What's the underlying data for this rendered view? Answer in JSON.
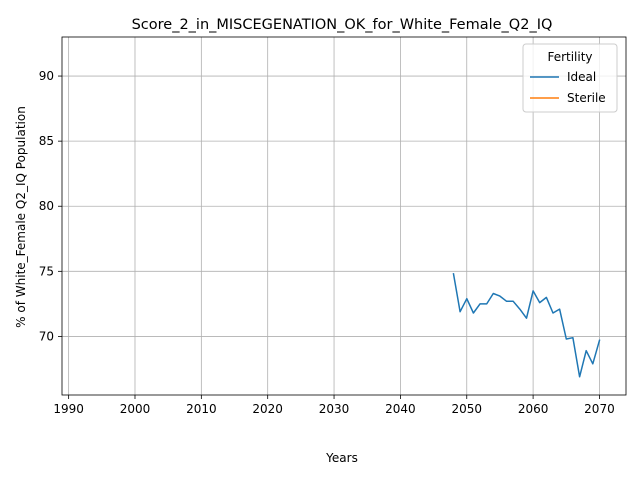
{
  "chart_data": {
    "type": "line",
    "title": "Score_2_in_MISCEGENATION_OK_for_White_Female_Q2_IQ",
    "xlabel": "Years",
    "ylabel": "% of White_Female Q2_IQ Population",
    "xlim": [
      1989,
      2074
    ],
    "ylim": [
      65.5,
      93
    ],
    "x_ticks": [
      1990,
      2000,
      2010,
      2020,
      2030,
      2040,
      2050,
      2060,
      2070
    ],
    "y_ticks": [
      70,
      75,
      80,
      85,
      90
    ],
    "grid": true,
    "legend": {
      "title": "Fertility",
      "position": "top-right"
    },
    "series": [
      {
        "name": "Ideal",
        "color": "#1f77b4",
        "x": [
          2048,
          2049,
          2050,
          2051,
          2052,
          2053,
          2054,
          2055,
          2056,
          2057,
          2058,
          2059,
          2060,
          2061,
          2062,
          2063,
          2064,
          2065,
          2066,
          2067,
          2068,
          2069,
          2070
        ],
        "y": [
          74.8,
          71.9,
          72.9,
          71.8,
          72.5,
          72.5,
          73.3,
          73.1,
          72.7,
          72.7,
          72.1,
          71.4,
          73.5,
          72.6,
          73.0,
          71.8,
          72.1,
          69.8,
          69.9,
          66.9,
          68.9,
          67.9,
          69.7
        ]
      },
      {
        "name": "Sterile",
        "color": "#ff7f0e",
        "x": [],
        "y": []
      }
    ]
  }
}
